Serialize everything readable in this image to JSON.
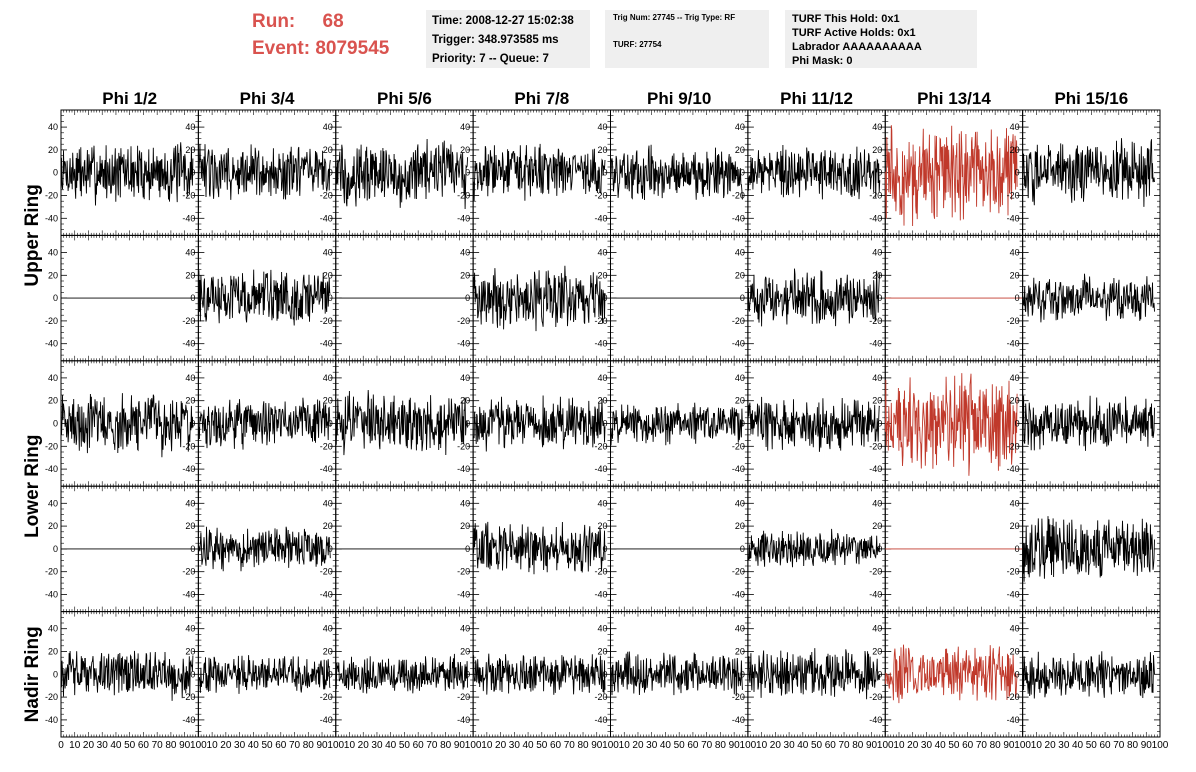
{
  "header": {
    "run_label": "Run:",
    "run_value": "68",
    "event_label": "Event:",
    "event_value": "8079545",
    "info_box_1": {
      "time": "Time: 2008-12-27 15:02:38",
      "trigger": "Trigger: 348.973585 ms",
      "priority": "Priority: 7 -- Queue: 7"
    },
    "info_box_2": {
      "trig": "Trig Num: 27745 -- Trig Type: RF",
      "turf": "TURF: 27754"
    },
    "info_box_3": {
      "this_hold": "TURF This Hold: 0x1",
      "active_holds": "TURF Active Holds: 0x1",
      "labrador": "Labrador AAAAAAAAAA",
      "phi_mask": "Phi Mask: 0"
    }
  },
  "colors": {
    "trace_default": "#000000",
    "trace_highlight": "#c0392b",
    "run_text": "#d9534f",
    "info_box_bg": "#efefef"
  },
  "chart_data": {
    "type": "line",
    "title": "",
    "column_labels": [
      "Phi 1/2",
      "Phi 3/4",
      "Phi 5/6",
      "Phi 7/8",
      "Phi 9/10",
      "Phi 11/12",
      "Phi 13/14",
      "Phi 15/16"
    ],
    "ring_labels": [
      "Upper Ring",
      "Lower Ring",
      "Nadir Ring"
    ],
    "ylim": [
      -55,
      55
    ],
    "xlim": [
      0,
      100
    ],
    "y_ticks": [
      -40,
      -20,
      0,
      20,
      40
    ],
    "x_ticks": [
      0,
      10,
      20,
      30,
      40,
      50,
      60,
      70,
      80,
      90,
      100
    ],
    "x_tick_labels": [
      "0",
      "10",
      "20",
      "30",
      "40",
      "50",
      "60",
      "70",
      "80",
      "90",
      "100"
    ],
    "highlight_column": 6,
    "rows": [
      {
        "amplitudes": [
          20,
          18,
          22,
          18,
          17,
          17,
          32,
          21
        ],
        "flat": [
          false,
          false,
          false,
          false,
          false,
          false,
          false,
          false
        ]
      },
      {
        "amplitudes": [
          0,
          18,
          0,
          20,
          0,
          18,
          0,
          15
        ],
        "flat": [
          true,
          false,
          true,
          false,
          true,
          false,
          true,
          false
        ]
      },
      {
        "amplitudes": [
          20,
          16,
          20,
          17,
          14,
          18,
          32,
          17
        ],
        "flat": [
          false,
          false,
          false,
          false,
          false,
          false,
          false,
          false
        ]
      },
      {
        "amplitudes": [
          0,
          14,
          0,
          17,
          0,
          12,
          0,
          20
        ],
        "flat": [
          true,
          false,
          true,
          false,
          true,
          false,
          true,
          false
        ]
      },
      {
        "amplitudes": [
          16,
          12,
          12,
          14,
          14,
          16,
          18,
          15
        ],
        "flat": [
          false,
          false,
          false,
          false,
          false,
          false,
          false,
          false
        ]
      }
    ]
  }
}
